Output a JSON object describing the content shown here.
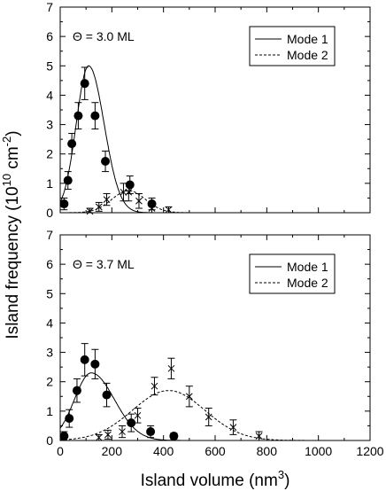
{
  "chart_data": [
    {
      "type": "scatter",
      "annotation": "Θ = 3.0 ML",
      "xlim": [
        0,
        1200
      ],
      "ylim": [
        0,
        7
      ],
      "x_ticks": [
        "0",
        "100",
        "200",
        "300",
        "400",
        "500",
        "600",
        "700",
        "800",
        "900",
        "1000",
        "1100",
        "1200"
      ],
      "y_ticks": [
        "0",
        "1",
        "2",
        "3",
        "4",
        "5",
        "6",
        "7"
      ],
      "show_x_tick_labels": false,
      "legend_position": "top-right",
      "curves": [
        {
          "name": "Mode 1",
          "style": "solid",
          "mu": 110,
          "sigma": 50,
          "amp": 5.0,
          "sigma_left": 48,
          "sigma_right": 60
        },
        {
          "name": "Mode 2",
          "style": "dashed",
          "mu": 265,
          "sigma": 65,
          "amp": 0.75
        }
      ],
      "series": [
        {
          "marker": "circle",
          "x": [
            15,
            30,
            45,
            70,
            95,
            135,
            175,
            270,
            355
          ],
          "y": [
            0.3,
            1.1,
            2.35,
            3.3,
            4.4,
            3.3,
            1.75,
            0.95,
            0.3
          ],
          "err": [
            0.2,
            0.3,
            0.35,
            0.45,
            0.55,
            0.45,
            0.35,
            0.3,
            0.2
          ]
        },
        {
          "marker": "x",
          "x": [
            115,
            150,
            180,
            245,
            265,
            305,
            355,
            420
          ],
          "y": [
            0.05,
            0.2,
            0.45,
            0.7,
            0.7,
            0.4,
            0.15,
            0.1
          ],
          "err": [
            0.1,
            0.15,
            0.2,
            0.3,
            0.3,
            0.25,
            0.15,
            0.1
          ]
        }
      ]
    },
    {
      "type": "scatter",
      "annotation": "Θ = 3.7 ML",
      "xlim": [
        0,
        1200
      ],
      "ylim": [
        0,
        7
      ],
      "x_ticks": [
        "0",
        "100",
        "200",
        "300",
        "400",
        "500",
        "600",
        "700",
        "800",
        "900",
        "1000",
        "1100",
        "1200"
      ],
      "y_ticks": [
        "0",
        "1",
        "2",
        "3",
        "4",
        "5",
        "6",
        "7"
      ],
      "show_x_tick_labels": true,
      "legend_position": "top-right",
      "curves": [
        {
          "name": "Mode 1",
          "style": "solid",
          "mu": 120,
          "sigma": 75,
          "amp": 2.3,
          "sigma_left": 65,
          "sigma_right": 90
        },
        {
          "name": "Mode 2",
          "style": "dashed",
          "mu": 420,
          "sigma": 140,
          "amp": 1.7
        }
      ],
      "series": [
        {
          "marker": "circle",
          "x": [
            15,
            35,
            65,
            95,
            135,
            180,
            275,
            350,
            440
          ],
          "y": [
            0.15,
            0.75,
            1.7,
            2.75,
            2.6,
            1.55,
            0.6,
            0.3,
            0.15
          ],
          "err": [
            0.15,
            0.3,
            0.4,
            0.55,
            0.5,
            0.4,
            0.3,
            0.2,
            0.1
          ]
        },
        {
          "marker": "x",
          "x": [
            150,
            185,
            240,
            300,
            365,
            430,
            500,
            575,
            670,
            770
          ],
          "y": [
            0.1,
            0.2,
            0.3,
            0.85,
            1.85,
            2.45,
            1.5,
            0.8,
            0.45,
            0.15
          ],
          "err": [
            0.1,
            0.15,
            0.2,
            0.25,
            0.3,
            0.35,
            0.35,
            0.3,
            0.25,
            0.15
          ]
        }
      ]
    }
  ],
  "xlabel_text": "Island volume (nm",
  "xlabel_sup": "3",
  "xlabel_close": ")",
  "ylabel_text": "Island frequency (10",
  "ylabel_sup1": "10",
  "ylabel_mid": " cm",
  "ylabel_sup2": "-2",
  "ylabel_close": ")"
}
